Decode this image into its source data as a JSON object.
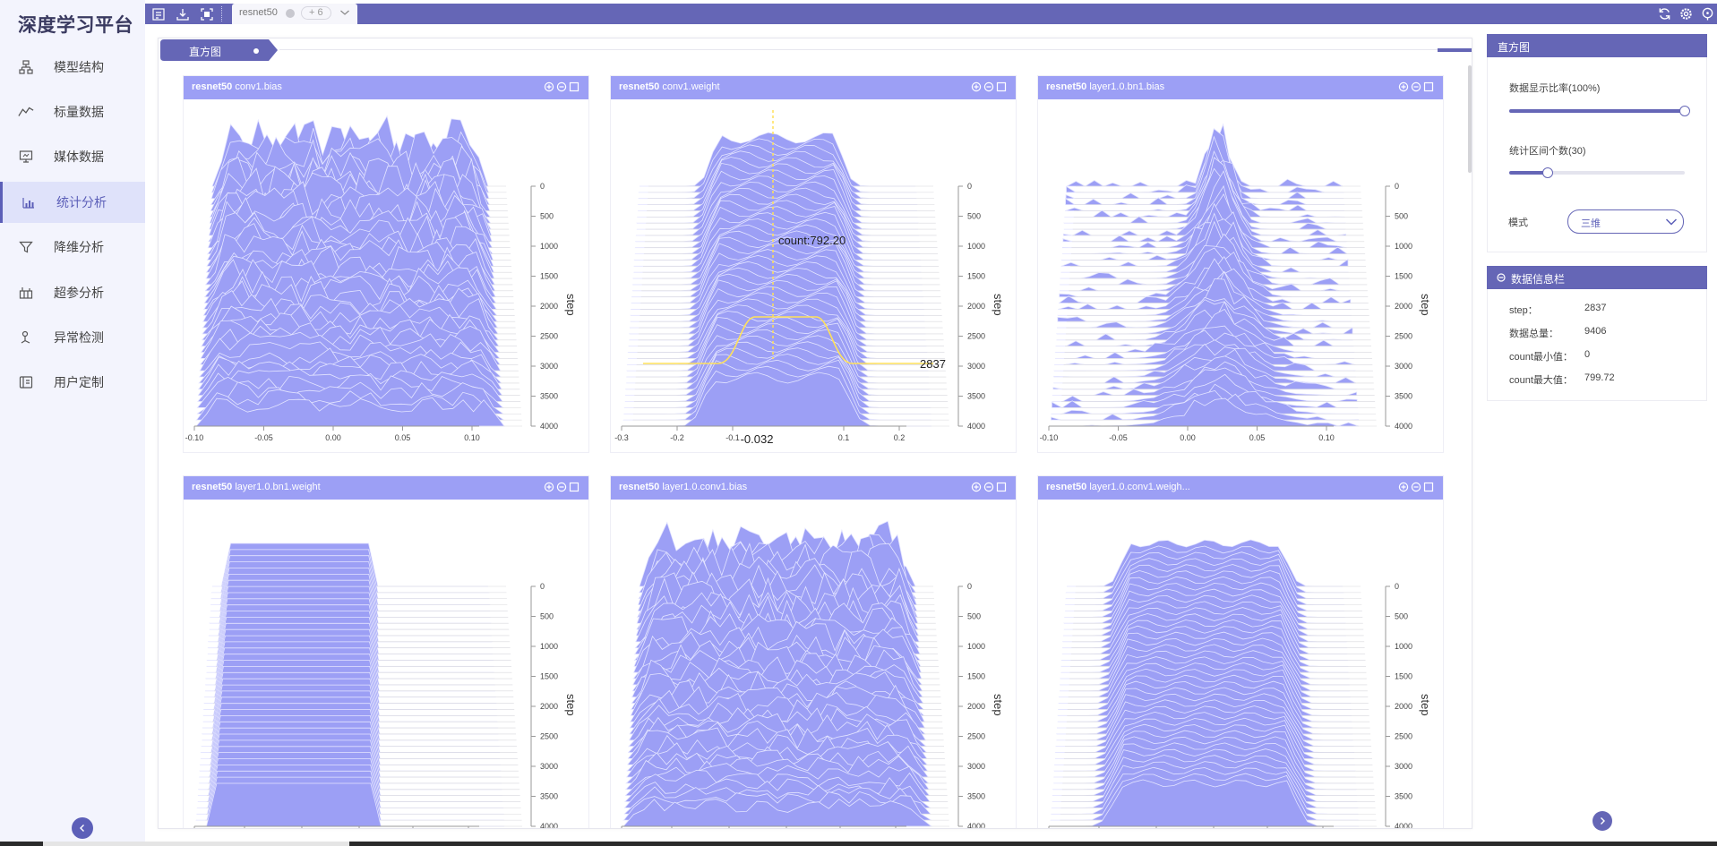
{
  "app": {
    "brand": "深度学习平台"
  },
  "sidebar": {
    "items": [
      {
        "label": "模型结构",
        "icon": "model-structure-icon",
        "active": false
      },
      {
        "label": "标量数据",
        "icon": "scalar-line-icon",
        "active": false
      },
      {
        "label": "媒体数据",
        "icon": "media-monitor-icon",
        "active": false
      },
      {
        "label": "统计分析",
        "icon": "statistics-chart-icon",
        "active": true
      },
      {
        "label": "降维分析",
        "icon": "funnel-icon",
        "active": false
      },
      {
        "label": "超参分析",
        "icon": "bar-grid-icon",
        "active": false
      },
      {
        "label": "异常检测",
        "icon": "anomaly-icon",
        "active": false
      },
      {
        "label": "用户定制",
        "icon": "custom-icon",
        "active": false
      }
    ]
  },
  "topbar": {
    "run_tab": {
      "name": "resnet50",
      "more": "+ 6"
    },
    "icons_left": [
      "export-icon",
      "download-icon",
      "fullscreen-icon"
    ],
    "icons_right": [
      "refresh-icon",
      "settings-icon",
      "help-icon"
    ]
  },
  "main": {
    "tab_label": "直方图"
  },
  "chart_data": [
    {
      "type": "area",
      "title_run": "resnet50",
      "title_tag": "conv1.bias",
      "pattern": "noisy",
      "x_ticks": [
        "-0.10",
        "-0.05",
        "0.00",
        "0.05",
        "0.10"
      ],
      "xlim": [
        -0.1,
        0.1
      ],
      "step_ticks": [
        "0",
        "500",
        "1000",
        "1500",
        "2000",
        "2500",
        "3000",
        "3500",
        "4000"
      ],
      "ylabel": "step",
      "color": "#9c9ff5"
    },
    {
      "type": "area",
      "title_run": "resnet50",
      "title_tag": "conv1.weight",
      "pattern": "plateau",
      "x_ticks": [
        "-0.3",
        "-0.2",
        "-0.1",
        "0.1",
        "0.2"
      ],
      "xlim": [
        -0.3,
        0.2
      ],
      "step_ticks": [
        "0",
        "500",
        "1000",
        "1500",
        "2000",
        "2500",
        "3000",
        "3500",
        "4000"
      ],
      "ylabel": "step",
      "color": "#9c9ff5",
      "hover": {
        "count_label": "count:792.20",
        "step_label": "2837",
        "x_label": "-0.032"
      }
    },
    {
      "type": "area",
      "title_run": "resnet50",
      "title_tag": "layer1.0.bn1.bias",
      "pattern": "peak",
      "x_ticks": [
        "-0.10",
        "-0.05",
        "0.00",
        "0.05",
        "0.10"
      ],
      "xlim": [
        -0.1,
        0.1
      ],
      "step_ticks": [
        "0",
        "500",
        "1000",
        "1500",
        "2000",
        "2500",
        "3000",
        "3500",
        "4000"
      ],
      "ylabel": "step",
      "color": "#9c9ff5"
    },
    {
      "type": "area",
      "title_run": "resnet50",
      "title_tag": "layer1.0.bn1.weight",
      "pattern": "block",
      "x_ticks": [],
      "step_ticks": [
        "0",
        "500",
        "1000",
        "1500",
        "2000",
        "2500",
        "3000",
        "3500",
        "4000"
      ],
      "ylabel": "step",
      "color": "#9c9ff5"
    },
    {
      "type": "area",
      "title_run": "resnet50",
      "title_tag": "layer1.0.conv1.bias",
      "pattern": "noisy2",
      "x_ticks": [],
      "step_ticks": [
        "0",
        "500",
        "1000",
        "1500",
        "2000",
        "2500",
        "3000",
        "3500",
        "4000"
      ],
      "ylabel": "step",
      "color": "#9c9ff5"
    },
    {
      "type": "area",
      "title_run": "resnet50",
      "title_tag": "layer1.0.conv1.weigh...",
      "pattern": "mesa",
      "x_ticks": [],
      "step_ticks": [
        "0",
        "500",
        "1000",
        "1500",
        "2000",
        "2500",
        "3000",
        "3500",
        "4000"
      ],
      "ylabel": "step",
      "color": "#9c9ff5"
    }
  ],
  "settings_panel": {
    "title": "直方图",
    "ratio_label": "数据显示比率(100%)",
    "ratio_value": 1.0,
    "bins_label": "统计区间个数(30)",
    "bins_value": 0.22,
    "mode_label": "模式",
    "mode_value": "三维"
  },
  "info_panel": {
    "title": "数据信息栏",
    "rows": [
      {
        "label": "step：",
        "value": "2837"
      },
      {
        "label": "数据总量：",
        "value": "9406"
      },
      {
        "label": "count最小值：",
        "value": "0"
      },
      {
        "label": "count最大值：",
        "value": "799.72"
      }
    ]
  }
}
